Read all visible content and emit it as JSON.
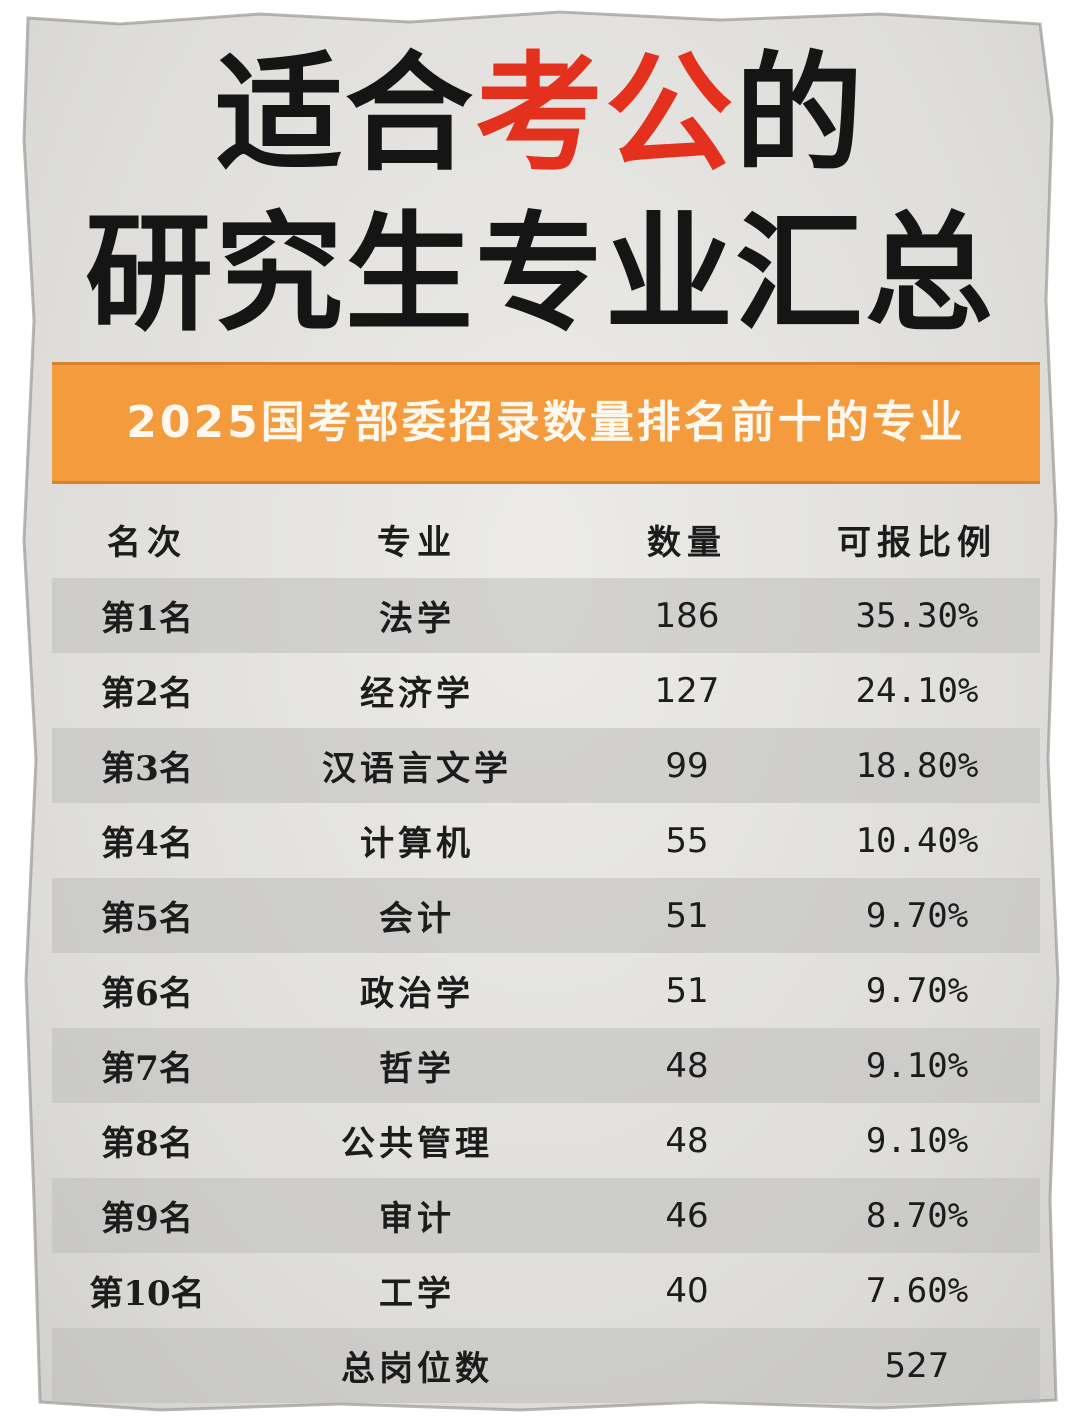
{
  "title": {
    "line1_before": "适合",
    "line1_accent": "考公",
    "line1_after": "的",
    "line2": "研究生专业汇总"
  },
  "banner": {
    "text": "2025国考部委招录数量排名前十的专业"
  },
  "colors": {
    "accent_red": "#e4311d",
    "banner_orange": "#f39b3d",
    "text_dark": "#151515"
  },
  "table": {
    "headers": {
      "rank": "名次",
      "major": "专业",
      "count": "数量",
      "ratio": "可报比例"
    },
    "rows": [
      {
        "rank": "第1名",
        "major": "法学",
        "count": "186",
        "ratio": "35.30%"
      },
      {
        "rank": "第2名",
        "major": "经济学",
        "count": "127",
        "ratio": "24.10%"
      },
      {
        "rank": "第3名",
        "major": "汉语言文学",
        "count": "99",
        "ratio": "18.80%"
      },
      {
        "rank": "第4名",
        "major": "计算机",
        "count": "55",
        "ratio": "10.40%"
      },
      {
        "rank": "第5名",
        "major": "会计",
        "count": "51",
        "ratio": "9.70%"
      },
      {
        "rank": "第6名",
        "major": "政治学",
        "count": "51",
        "ratio": "9.70%"
      },
      {
        "rank": "第7名",
        "major": "哲学",
        "count": "48",
        "ratio": "9.10%"
      },
      {
        "rank": "第8名",
        "major": "公共管理",
        "count": "48",
        "ratio": "9.10%"
      },
      {
        "rank": "第9名",
        "major": "审计",
        "count": "46",
        "ratio": "8.70%"
      },
      {
        "rank": "第10名",
        "major": "工学",
        "count": "40",
        "ratio": "7.60%"
      }
    ],
    "total": {
      "label": "总岗位数",
      "value": "527"
    }
  }
}
